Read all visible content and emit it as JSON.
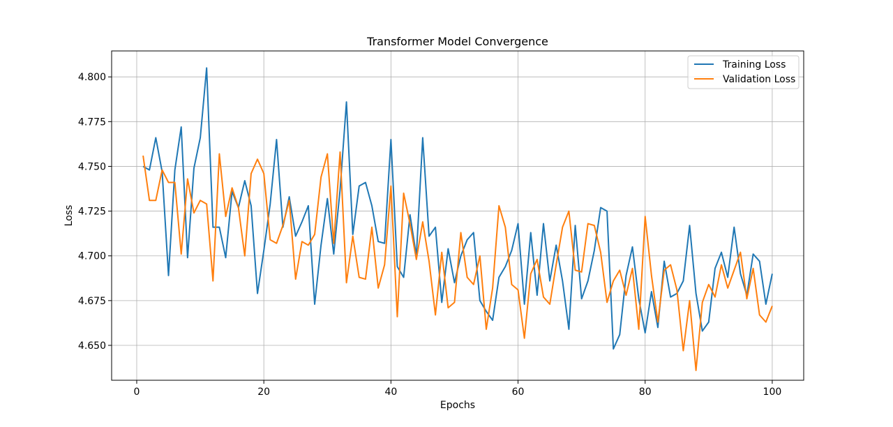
{
  "chart_data": {
    "type": "line",
    "title": "Transformer Model Convergence",
    "xlabel": "Epochs",
    "ylabel": "Loss",
    "xlim": [
      -3.95,
      104.95
    ],
    "ylim": [
      4.6305,
      4.8145
    ],
    "xticks": [
      0,
      20,
      40,
      60,
      80,
      100
    ],
    "yticks": [
      4.65,
      4.675,
      4.7,
      4.725,
      4.75,
      4.775,
      4.8
    ],
    "grid": true,
    "legend": "top-right",
    "series": [
      {
        "name": "Training Loss",
        "color": "#1f77b4",
        "x": [
          1,
          2,
          3,
          4,
          5,
          6,
          7,
          8,
          9,
          10,
          11,
          12,
          13,
          14,
          15,
          16,
          17,
          18,
          19,
          20,
          21,
          22,
          23,
          24,
          25,
          26,
          27,
          28,
          29,
          30,
          31,
          32,
          33,
          34,
          35,
          36,
          37,
          38,
          39,
          40,
          41,
          42,
          43,
          44,
          45,
          46,
          47,
          48,
          49,
          50,
          51,
          52,
          53,
          54,
          55,
          56,
          57,
          58,
          59,
          60,
          61,
          62,
          63,
          64,
          65,
          66,
          67,
          68,
          69,
          70,
          71,
          72,
          73,
          74,
          75,
          76,
          77,
          78,
          79,
          80,
          81,
          82,
          83,
          84,
          85,
          86,
          87,
          88,
          89,
          90,
          91,
          92,
          93,
          94,
          95,
          96,
          97,
          98,
          99,
          100
        ],
        "values": [
          4.75,
          4.748,
          4.766,
          4.747,
          4.689,
          4.748,
          4.772,
          4.699,
          4.749,
          4.766,
          4.805,
          4.716,
          4.716,
          4.699,
          4.736,
          4.727,
          4.742,
          4.728,
          4.679,
          4.703,
          4.729,
          4.765,
          4.716,
          4.733,
          4.711,
          4.719,
          4.728,
          4.673,
          4.706,
          4.732,
          4.701,
          4.737,
          4.786,
          4.712,
          4.739,
          4.741,
          4.728,
          4.708,
          4.707,
          4.765,
          4.694,
          4.688,
          4.723,
          4.7,
          4.766,
          4.711,
          4.716,
          4.674,
          4.704,
          4.685,
          4.7,
          4.709,
          4.713,
          4.675,
          4.669,
          4.664,
          4.688,
          4.694,
          4.703,
          4.718,
          4.673,
          4.713,
          4.678,
          4.718,
          4.686,
          4.706,
          4.686,
          4.659,
          4.717,
          4.676,
          4.686,
          4.703,
          4.727,
          4.725,
          4.648,
          4.656,
          4.689,
          4.705,
          4.676,
          4.657,
          4.68,
          4.66,
          4.697,
          4.677,
          4.679,
          4.686,
          4.717,
          4.679,
          4.658,
          4.663,
          4.693,
          4.702,
          4.688,
          4.716,
          4.69,
          4.678,
          4.701,
          4.697,
          4.673,
          4.69
        ]
      },
      {
        "name": "Validation Loss",
        "color": "#ff7f0e",
        "x": [
          1,
          2,
          3,
          4,
          5,
          6,
          7,
          8,
          9,
          10,
          11,
          12,
          13,
          14,
          15,
          16,
          17,
          18,
          19,
          20,
          21,
          22,
          23,
          24,
          25,
          26,
          27,
          28,
          29,
          30,
          31,
          32,
          33,
          34,
          35,
          36,
          37,
          38,
          39,
          40,
          41,
          42,
          43,
          44,
          45,
          46,
          47,
          48,
          49,
          50,
          51,
          52,
          53,
          54,
          55,
          56,
          57,
          58,
          59,
          60,
          61,
          62,
          63,
          64,
          65,
          66,
          67,
          68,
          69,
          70,
          71,
          72,
          73,
          74,
          75,
          76,
          77,
          78,
          79,
          80,
          81,
          82,
          83,
          84,
          85,
          86,
          87,
          88,
          89,
          90,
          91,
          92,
          93,
          94,
          95,
          96,
          97,
          98,
          99,
          100
        ],
        "values": [
          4.756,
          4.731,
          4.731,
          4.748,
          4.741,
          4.741,
          4.701,
          4.743,
          4.724,
          4.731,
          4.729,
          4.686,
          4.757,
          4.722,
          4.738,
          4.727,
          4.7,
          4.746,
          4.754,
          4.746,
          4.709,
          4.707,
          4.717,
          4.731,
          4.687,
          4.708,
          4.706,
          4.712,
          4.744,
          4.757,
          4.707,
          4.758,
          4.685,
          4.711,
          4.688,
          4.687,
          4.716,
          4.682,
          4.695,
          4.739,
          4.666,
          4.735,
          4.718,
          4.698,
          4.719,
          4.697,
          4.667,
          4.702,
          4.671,
          4.674,
          4.713,
          4.688,
          4.684,
          4.7,
          4.659,
          4.682,
          4.728,
          4.716,
          4.684,
          4.681,
          4.654,
          4.69,
          4.698,
          4.677,
          4.673,
          4.695,
          4.716,
          4.725,
          4.692,
          4.691,
          4.718,
          4.717,
          4.702,
          4.674,
          4.686,
          4.692,
          4.678,
          4.693,
          4.659,
          4.722,
          4.689,
          4.663,
          4.692,
          4.695,
          4.681,
          4.647,
          4.675,
          4.636,
          4.674,
          4.684,
          4.677,
          4.695,
          4.682,
          4.692,
          4.702,
          4.676,
          4.693,
          4.667,
          4.663,
          4.672
        ]
      }
    ]
  }
}
